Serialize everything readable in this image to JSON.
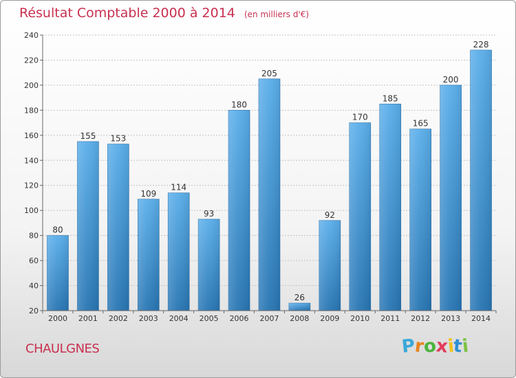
{
  "title": "Résultat Comptable 2000 à 2014",
  "unit": "(en milliers d'€)",
  "place": "CHAULGNES",
  "brand": {
    "letters": [
      "P",
      "r",
      "o",
      "x",
      "i",
      "t",
      "i"
    ],
    "colors": [
      "#3aa7d8",
      "#e8831f",
      "#4bb43c",
      "#e23a5a",
      "#f2c21b",
      "#2f8fd1",
      "#7cc242"
    ]
  },
  "chart_data": {
    "type": "bar",
    "categories": [
      "2000",
      "2001",
      "2002",
      "2003",
      "2004",
      "2005",
      "2006",
      "2007",
      "2008",
      "2009",
      "2010",
      "2011",
      "2012",
      "2013",
      "2014"
    ],
    "values": [
      80,
      155,
      153,
      109,
      114,
      93,
      180,
      205,
      26,
      92,
      170,
      185,
      165,
      200,
      228
    ],
    "yticks": [
      20,
      40,
      60,
      80,
      100,
      120,
      140,
      160,
      180,
      200,
      220,
      240
    ],
    "ylim": [
      20,
      240
    ],
    "grid": true,
    "bar_color_top": "#5aaeea",
    "bar_color_bottom": "#2775b3",
    "title": "Résultat Comptable 2000 à 2014",
    "xlabel": "",
    "ylabel": ""
  }
}
